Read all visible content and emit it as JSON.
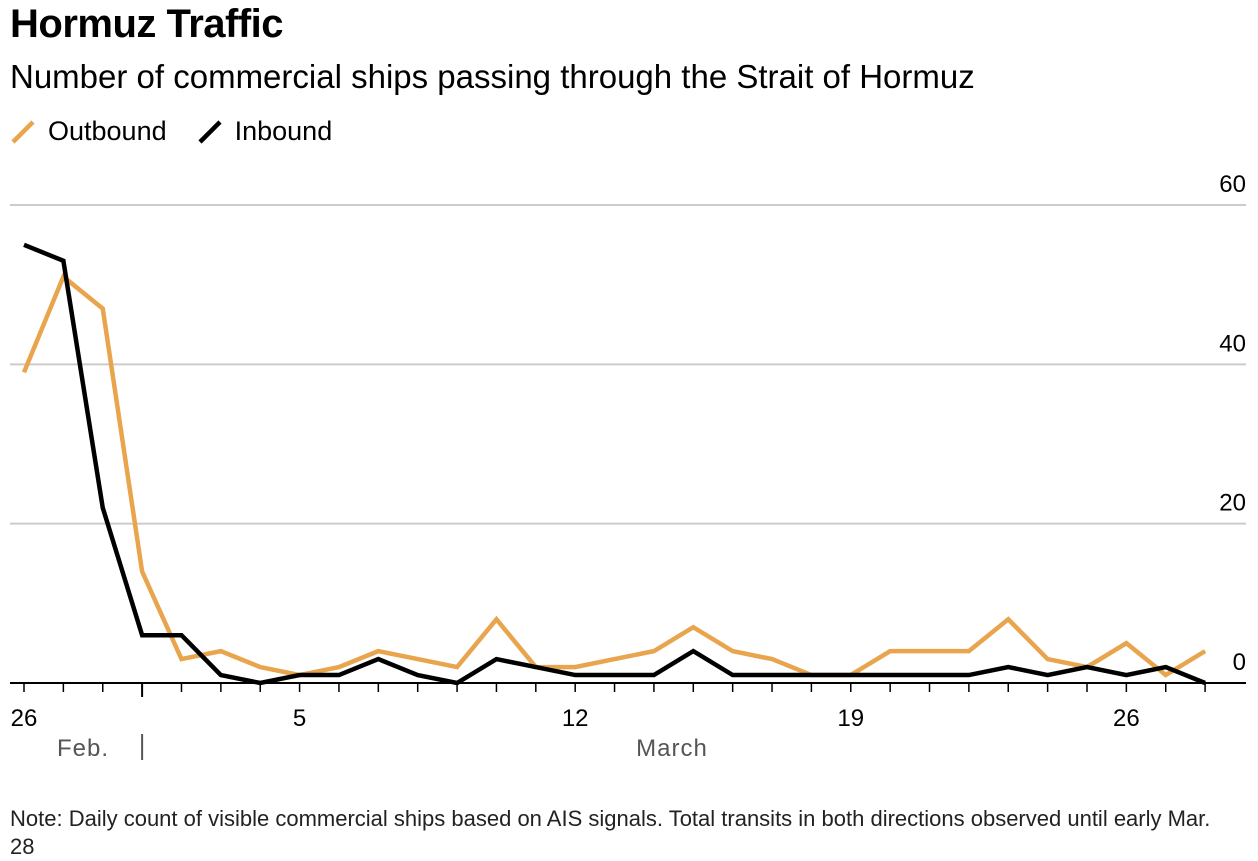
{
  "title": "Hormuz Traffic",
  "subtitle": "Number of commercial ships passing through the Strait of Hormuz",
  "note": "Note: Daily count of visible commercial ships based on AIS signals. Total transits in both directions observed until early Mar. 28",
  "colors": {
    "outbound": "#E8A54D",
    "inbound": "#000000",
    "grid": "#CCCCCC"
  },
  "chart_data": {
    "type": "line",
    "x": [
      "Feb 26",
      "Feb 27",
      "Feb 28",
      "Mar 1",
      "Mar 2",
      "Mar 3",
      "Mar 4",
      "Mar 5",
      "Mar 6",
      "Mar 7",
      "Mar 8",
      "Mar 9",
      "Mar 10",
      "Mar 11",
      "Mar 12",
      "Mar 13",
      "Mar 14",
      "Mar 15",
      "Mar 16",
      "Mar 17",
      "Mar 18",
      "Mar 19",
      "Mar 20",
      "Mar 21",
      "Mar 22",
      "Mar 23",
      "Mar 24",
      "Mar 25",
      "Mar 26",
      "Mar 27",
      "Mar 28"
    ],
    "series": [
      {
        "name": "Outbound",
        "values": [
          39,
          51,
          47,
          14,
          3,
          4,
          2,
          1,
          2,
          4,
          3,
          2,
          8,
          2,
          2,
          3,
          4,
          7,
          4,
          3,
          1,
          1,
          4,
          4,
          4,
          8,
          3,
          2,
          5,
          1,
          4
        ]
      },
      {
        "name": "Inbound",
        "values": [
          55,
          53,
          22,
          6,
          6,
          1,
          0,
          1,
          1,
          3,
          1,
          0,
          3,
          2,
          1,
          1,
          1,
          4,
          1,
          1,
          1,
          1,
          1,
          1,
          1,
          2,
          1,
          2,
          1,
          2,
          0
        ]
      }
    ],
    "x_tick_labels": [
      "26",
      "5",
      "12",
      "19",
      "26"
    ],
    "x_tick_label_index": [
      0,
      7,
      14,
      21,
      28
    ],
    "month_labels": [
      "Feb.",
      "March"
    ],
    "y_ticks": [
      0,
      20,
      40,
      60
    ],
    "ylim": [
      0,
      60
    ],
    "grid": true,
    "legend_position": "top-left"
  }
}
